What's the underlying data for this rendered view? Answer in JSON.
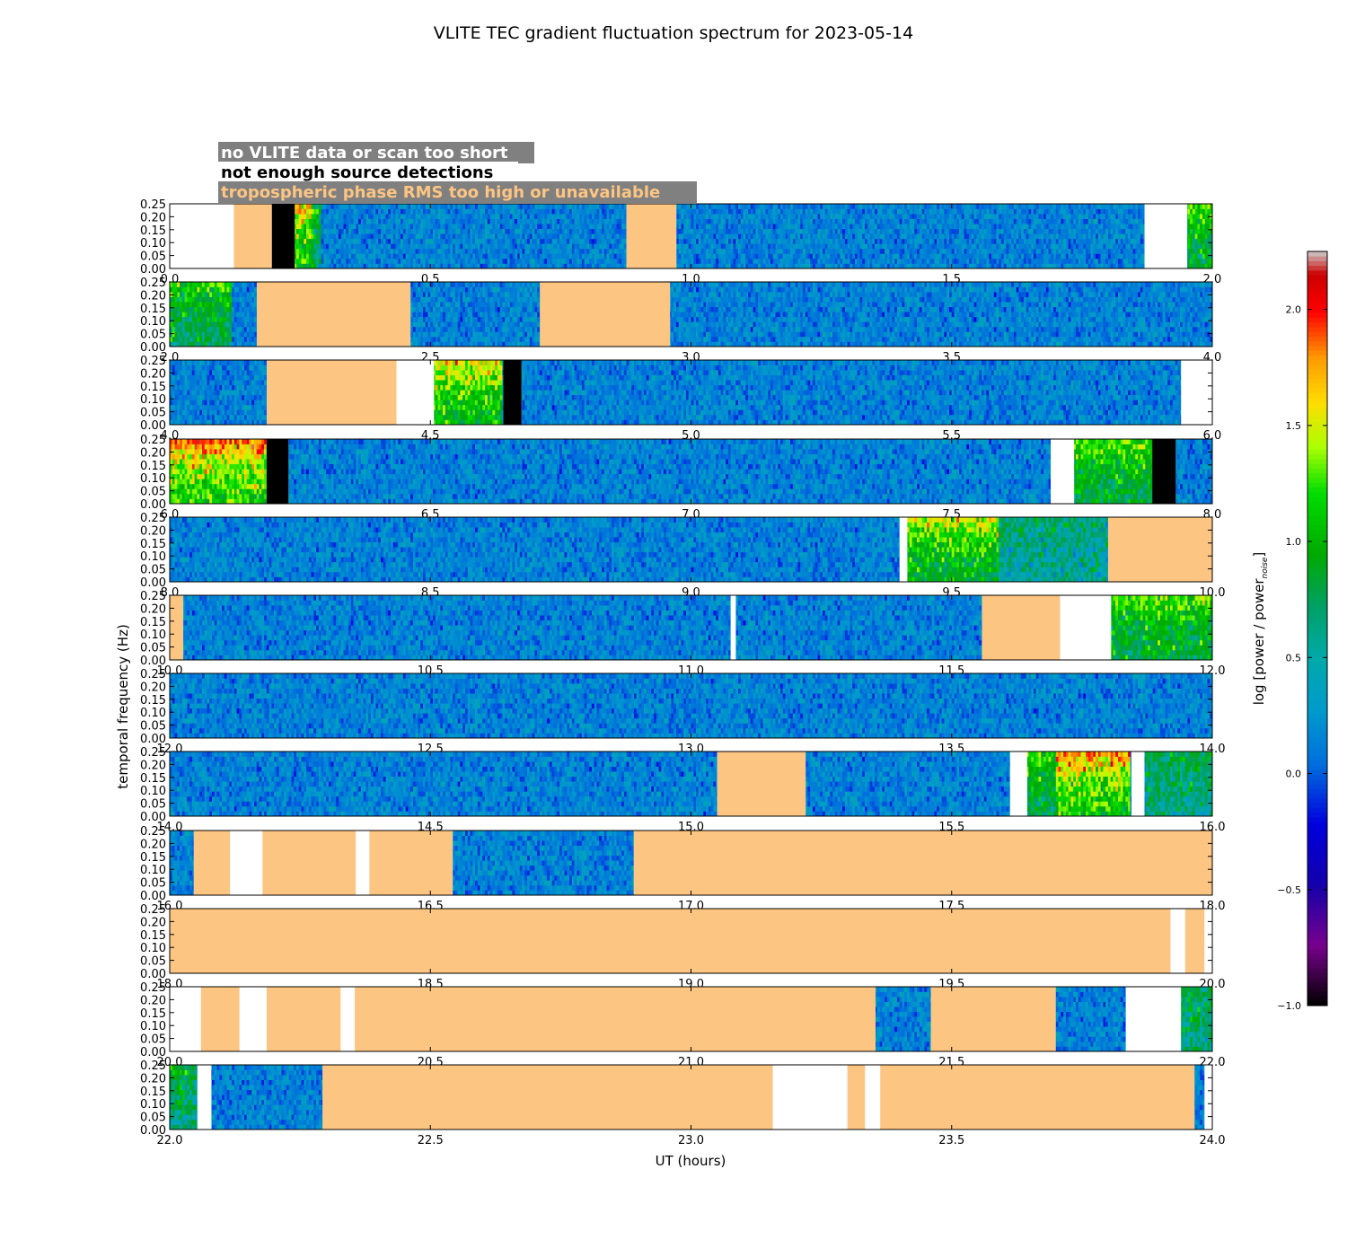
{
  "chart_data": {
    "type": "heatmap",
    "title": "VLITE TEC gradient fluctuation spectrum for 2023-05-14",
    "xlabel": "UT (hours)",
    "ylabel": "temporal frequency (Hz)",
    "yticks": [
      "0.00",
      "0.05",
      "0.10",
      "0.15",
      "0.20",
      "0.25"
    ],
    "ylim": [
      0,
      0.25
    ],
    "legend": [
      {
        "label": "no VLITE data or scan too short",
        "bg": "#808080",
        "fg": "#ffffff"
      },
      {
        "label": "not enough source detections",
        "bg": "#ffffff",
        "fg": "#000000"
      },
      {
        "label": "tropospheric phase RMS too high or unavailable",
        "bg": "#808080",
        "fg": "#fdc582"
      }
    ],
    "colorbar": {
      "label": "log [power / power",
      "label_sub": "noise",
      "label_end": "]",
      "range": [
        -1.0,
        2.25
      ],
      "ticks": [
        "2.0",
        "1.5",
        "1.0",
        "0.5",
        "0.0",
        "−0.5",
        "−1.0"
      ],
      "tick_values": [
        2.0,
        1.5,
        1.0,
        0.5,
        0.0,
        -0.5,
        -1.0
      ]
    },
    "flag_colors": {
      "nodata": "#ffffff",
      "nodet": "#000000",
      "tropo": "#fdc582"
    },
    "panels": [
      {
        "xlim": [
          0,
          2
        ],
        "xticks": [
          "0.0",
          "0.5",
          "1.0",
          "1.5",
          "2.0"
        ],
        "segments": [
          [
            "nodata",
            0.0,
            0.123
          ],
          [
            "tropo",
            0.123,
            0.196
          ],
          [
            "nodet",
            0.196,
            0.24
          ],
          [
            "data",
            0.24,
            0.876
          ],
          [
            "tropo",
            0.876,
            0.972
          ],
          [
            "data",
            0.972,
            1.87
          ],
          [
            "nodata",
            1.87,
            1.952
          ],
          [
            "data",
            1.952,
            2.0
          ]
        ],
        "hot": [
          [
            0.24,
            0.29,
            0.7
          ],
          [
            0.24,
            0.27,
            1.3
          ],
          [
            1.952,
            2.0,
            0.9
          ]
        ]
      },
      {
        "xlim": [
          2,
          4
        ],
        "xticks": [
          "2.0",
          "2.5",
          "3.0",
          "3.5",
          "4.0"
        ],
        "segments": [
          [
            "data",
            2.0,
            2.167
          ],
          [
            "tropo",
            2.167,
            2.462
          ],
          [
            "data",
            2.462,
            2.71
          ],
          [
            "tropo",
            2.71,
            2.96
          ],
          [
            "data",
            2.96,
            4.0
          ]
        ],
        "hot": [
          [
            2.0,
            2.12,
            0.8
          ]
        ]
      },
      {
        "xlim": [
          4,
          6
        ],
        "xticks": [
          "4.0",
          "4.5",
          "5.0",
          "5.5",
          "6.0"
        ],
        "segments": [
          [
            "data",
            4.0,
            4.186
          ],
          [
            "tropo",
            4.186,
            4.435
          ],
          [
            "nodata",
            4.435,
            4.507
          ],
          [
            "data",
            4.507,
            4.64
          ],
          [
            "nodet",
            4.64,
            4.675
          ],
          [
            "data",
            4.675,
            5.94
          ],
          [
            "nodata",
            5.94,
            6.0
          ]
        ],
        "hot": [
          [
            4.507,
            4.64,
            1.2
          ]
        ]
      },
      {
        "xlim": [
          6,
          8
        ],
        "xticks": [
          "6.0",
          "6.5",
          "7.0",
          "7.5",
          "8.0"
        ],
        "segments": [
          [
            "data",
            6.0,
            6.186
          ],
          [
            "nodet",
            6.186,
            6.228
          ],
          [
            "data",
            6.228,
            7.69
          ],
          [
            "nodata",
            7.69,
            7.735
          ],
          [
            "data",
            7.735,
            7.885
          ],
          [
            "nodet",
            7.885,
            7.93
          ],
          [
            "data",
            7.93,
            8.0
          ]
        ],
        "hot": [
          [
            6.0,
            6.186,
            1.5
          ],
          [
            7.735,
            7.885,
            0.9
          ]
        ]
      },
      {
        "xlim": [
          8,
          10
        ],
        "xticks": [
          "8.0",
          "8.5",
          "9.0",
          "9.5",
          "10.0"
        ],
        "segments": [
          [
            "data",
            8.0,
            9.4
          ],
          [
            "nodata",
            9.4,
            9.415
          ],
          [
            "data",
            9.415,
            9.59
          ],
          [
            "data",
            9.59,
            9.8
          ],
          [
            "tropo",
            9.8,
            10.0
          ]
        ],
        "hot": [
          [
            9.415,
            9.59,
            1.1
          ],
          [
            9.59,
            9.8,
            0.3
          ]
        ]
      },
      {
        "xlim": [
          10,
          12
        ],
        "xticks": [
          "10.0",
          "10.5",
          "11.0",
          "11.5",
          "12.0"
        ],
        "segments": [
          [
            "tropo",
            10.0,
            10.026
          ],
          [
            "data",
            10.026,
            11.076
          ],
          [
            "nodata",
            11.076,
            11.086
          ],
          [
            "data",
            11.086,
            11.558
          ],
          [
            "tropo",
            11.558,
            11.708
          ],
          [
            "nodata",
            11.708,
            11.806
          ],
          [
            "data",
            11.806,
            12.0
          ]
        ],
        "hot": [
          [
            11.806,
            12.0,
            0.9
          ]
        ]
      },
      {
        "xlim": [
          12,
          14
        ],
        "xticks": [
          "12.0",
          "12.5",
          "13.0",
          "13.5",
          "14.0"
        ],
        "segments": [
          [
            "data",
            12.0,
            14.0
          ]
        ],
        "hot": []
      },
      {
        "xlim": [
          14,
          16
        ],
        "xticks": [
          "14.0",
          "14.5",
          "15.0",
          "15.5",
          "16.0"
        ],
        "segments": [
          [
            "data",
            14.0,
            15.05
          ],
          [
            "tropo",
            15.05,
            15.22
          ],
          [
            "data",
            15.22,
            15.612
          ],
          [
            "nodata",
            15.612,
            15.645
          ],
          [
            "data",
            15.645,
            15.7
          ],
          [
            "data",
            15.7,
            15.845
          ],
          [
            "nodata",
            15.845,
            15.87
          ],
          [
            "data",
            15.87,
            16.0
          ]
        ],
        "hot": [
          [
            15.645,
            15.7,
            0.9
          ],
          [
            15.7,
            15.845,
            1.4
          ],
          [
            15.87,
            16.0,
            0.5
          ]
        ]
      },
      {
        "xlim": [
          16,
          18
        ],
        "xticks": [
          "16.0",
          "16.5",
          "17.0",
          "17.5",
          "18.0"
        ],
        "segments": [
          [
            "data",
            16.0,
            16.046
          ],
          [
            "tropo",
            16.046,
            16.116
          ],
          [
            "nodata",
            16.116,
            16.178
          ],
          [
            "tropo",
            16.178,
            16.357
          ],
          [
            "nodata",
            16.357,
            16.383
          ],
          [
            "tropo",
            16.383,
            16.543
          ],
          [
            "data",
            16.543,
            16.89
          ],
          [
            "tropo",
            16.89,
            18.0
          ]
        ],
        "hot": []
      },
      {
        "xlim": [
          18,
          20
        ],
        "xticks": [
          "18.0",
          "18.5",
          "19.0",
          "19.5",
          "20.0"
        ],
        "segments": [
          [
            "tropo",
            18.0,
            19.92
          ],
          [
            "nodata",
            19.92,
            19.948
          ],
          [
            "tropo",
            19.948,
            19.985
          ],
          [
            "nodata",
            19.985,
            20.0
          ]
        ],
        "hot": []
      },
      {
        "xlim": [
          20,
          22
        ],
        "xticks": [
          "20.0",
          "20.5",
          "21.0",
          "21.5",
          "22.0"
        ],
        "segments": [
          [
            "nodata",
            20.0,
            20.06
          ],
          [
            "tropo",
            20.06,
            20.134
          ],
          [
            "nodata",
            20.134,
            20.186
          ],
          [
            "tropo",
            20.186,
            20.328
          ],
          [
            "nodata",
            20.328,
            20.355
          ],
          [
            "tropo",
            20.355,
            21.354
          ],
          [
            "data",
            21.354,
            21.46
          ],
          [
            "tropo",
            21.46,
            21.7
          ],
          [
            "data",
            21.7,
            21.834
          ],
          [
            "nodata",
            21.834,
            21.94
          ],
          [
            "data",
            21.94,
            22.0
          ]
        ],
        "hot": [
          [
            21.94,
            22.0,
            0.5
          ]
        ]
      },
      {
        "xlim": [
          22,
          24
        ],
        "xticks": [
          "22.0",
          "22.5",
          "23.0",
          "23.5",
          "24.0"
        ],
        "segments": [
          [
            "data",
            22.0,
            22.053
          ],
          [
            "nodata",
            22.053,
            22.08
          ],
          [
            "data",
            22.08,
            22.293
          ],
          [
            "tropo",
            22.293,
            23.157
          ],
          [
            "nodata",
            23.157,
            23.3
          ],
          [
            "tropo",
            23.3,
            23.334
          ],
          [
            "nodata",
            23.334,
            23.363
          ],
          [
            "tropo",
            23.363,
            23.966
          ],
          [
            "data",
            23.966,
            23.985
          ],
          [
            "nodata",
            23.985,
            24.0
          ]
        ],
        "hot": [
          [
            22.0,
            22.053,
            0.5
          ]
        ]
      }
    ]
  }
}
